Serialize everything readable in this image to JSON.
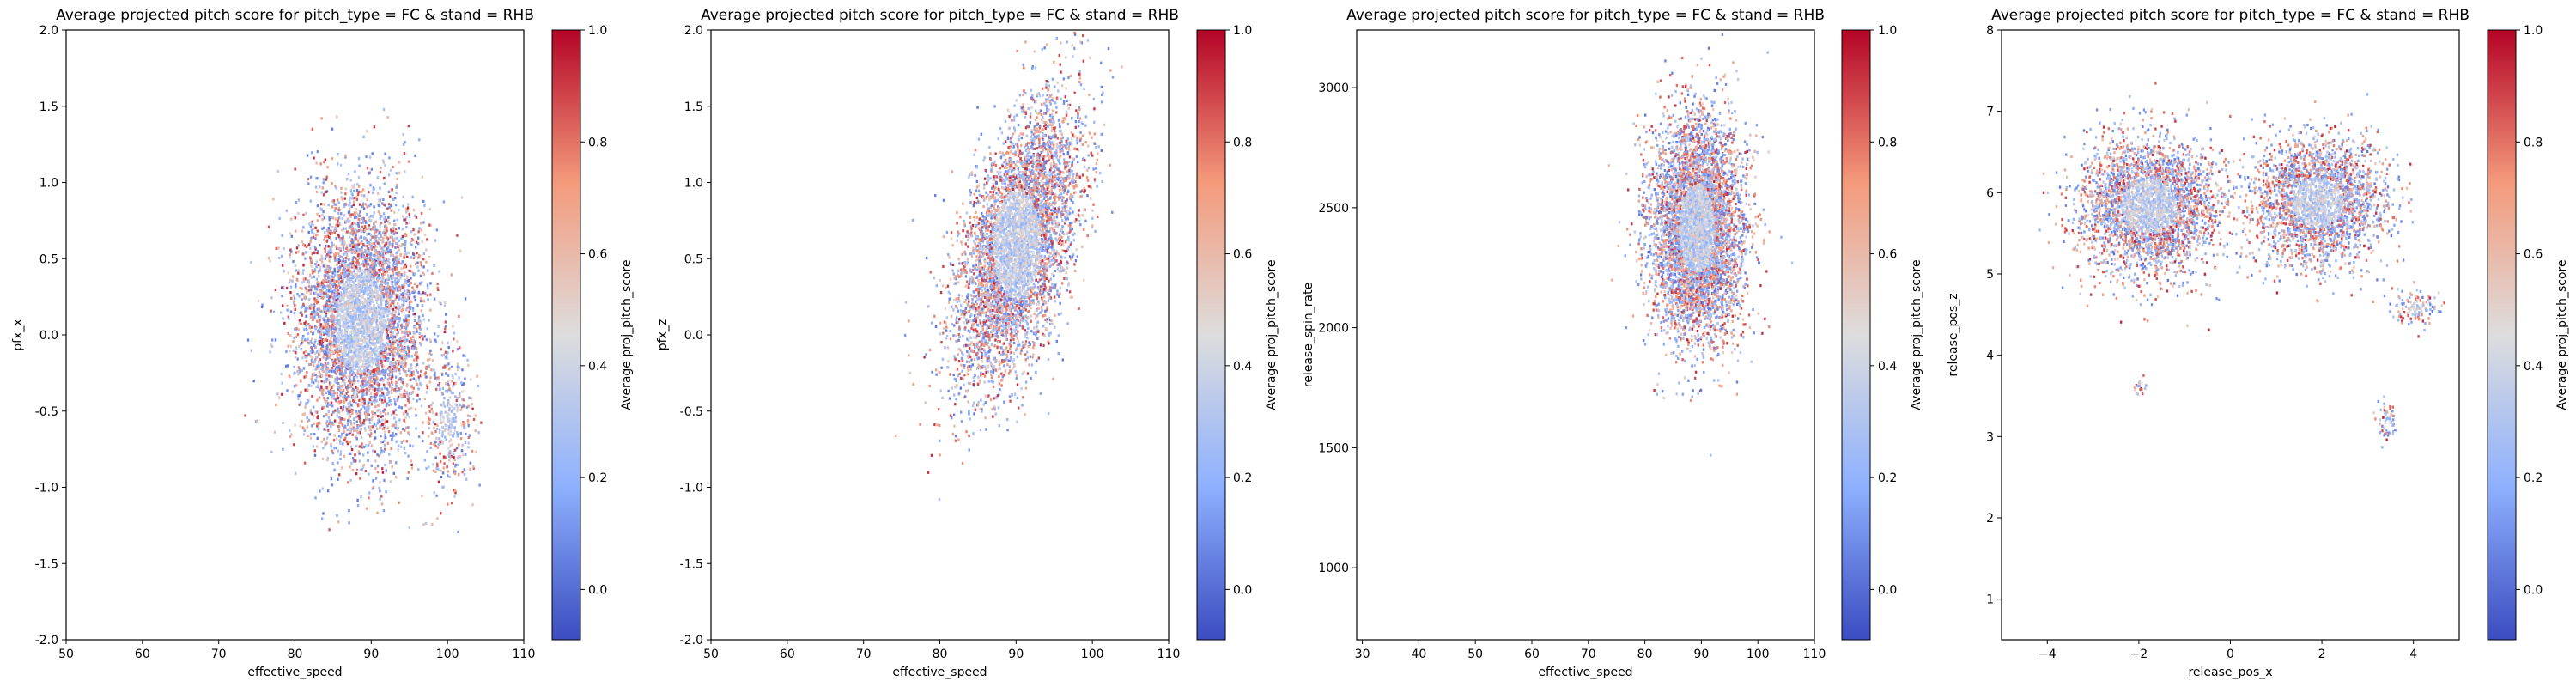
{
  "colors": {
    "low": "#3b4cc0",
    "mid": "#dddddd",
    "high": "#b40426"
  },
  "colorbar": {
    "label": "Average proj_pitch_score"
  },
  "chart_data": [
    {
      "type": "heatmap",
      "title": "Average projected pitch score for pitch_type = FC & stand = RHB",
      "xlabel": "effective_speed",
      "ylabel": "pfx_x",
      "xlim": [
        50,
        110
      ],
      "ylim": [
        -2.0,
        2.0
      ],
      "xticks": [
        "50",
        "60",
        "70",
        "80",
        "90",
        "100",
        "110"
      ],
      "xtick_values": [
        50,
        60,
        70,
        80,
        90,
        100,
        110
      ],
      "yticks": [
        "-2.0",
        "-1.5",
        "-1.0",
        "-0.5",
        "0.0",
        "0.5",
        "1.0",
        "1.5",
        "2.0"
      ],
      "ytick_values": [
        -2,
        -1.5,
        -1,
        -0.5,
        0,
        0.5,
        1,
        1.5,
        2
      ],
      "clusters": [
        {
          "cx": 88.5,
          "cy": 0.1,
          "sx": 4.2,
          "sy": 0.42,
          "n": 5200
        },
        {
          "cx": 100,
          "cy": -0.55,
          "sx": 1.6,
          "sy": 0.25,
          "n": 350
        }
      ],
      "colorbar_ticks": [
        "0.0",
        "0.2",
        "0.4",
        "0.6",
        "0.8",
        "1.0"
      ],
      "colorbar_tick_values": [
        0,
        0.2,
        0.4,
        0.6,
        0.8,
        1.0
      ],
      "colorbar_range": [
        -0.09,
        1.0
      ]
    },
    {
      "type": "heatmap",
      "title": "Average projected pitch score for pitch_type = FC & stand = RHB",
      "xlabel": "effective_speed",
      "ylabel": "pfx_z",
      "xlim": [
        50,
        110
      ],
      "ylim": [
        -2.0,
        2.0
      ],
      "xticks": [
        "50",
        "60",
        "70",
        "80",
        "90",
        "100",
        "110"
      ],
      "xtick_values": [
        50,
        60,
        70,
        80,
        90,
        100,
        110
      ],
      "yticks": [
        "-2.0",
        "-1.5",
        "-1.0",
        "-0.5",
        "0.0",
        "0.5",
        "1.0",
        "1.5",
        "2.0"
      ],
      "ytick_values": [
        -2,
        -1.5,
        -1,
        -0.5,
        0,
        0.5,
        1,
        1.5,
        2
      ],
      "clusters": [
        {
          "cx": 90,
          "cy": 0.6,
          "sx": 4.0,
          "sy": 0.45,
          "n": 5200,
          "rho": 0.55
        }
      ],
      "colorbar_ticks": [
        "0.0",
        "0.2",
        "0.4",
        "0.6",
        "0.8",
        "1.0"
      ],
      "colorbar_tick_values": [
        0,
        0.2,
        0.4,
        0.6,
        0.8,
        1.0
      ],
      "colorbar_range": [
        -0.09,
        1.0
      ]
    },
    {
      "type": "heatmap",
      "title": "Average projected pitch score for pitch_type = FC & stand = RHB",
      "xlabel": "effective_speed",
      "ylabel": "release_spin_rate",
      "xlim": [
        29,
        110
      ],
      "ylim": [
        700,
        3240
      ],
      "xticks": [
        "30",
        "40",
        "50",
        "60",
        "70",
        "80",
        "90",
        "100",
        "110"
      ],
      "xtick_values": [
        30,
        40,
        50,
        60,
        70,
        80,
        90,
        100,
        110
      ],
      "yticks": [
        "1000",
        "1500",
        "2000",
        "2500",
        "3000"
      ],
      "ytick_values": [
        1000,
        1500,
        2000,
        2500,
        3000
      ],
      "clusters": [
        {
          "cx": 89,
          "cy": 2420,
          "sx": 4.0,
          "sy": 230,
          "n": 5200
        }
      ],
      "colorbar_ticks": [
        "0.0",
        "0.2",
        "0.4",
        "0.6",
        "0.8",
        "1.0"
      ],
      "colorbar_tick_values": [
        0,
        0.2,
        0.4,
        0.6,
        0.8,
        1.0
      ],
      "colorbar_range": [
        -0.09,
        1.0
      ]
    },
    {
      "type": "heatmap",
      "title": "Average projected pitch score for pitch_type = FC & stand = RHB",
      "xlabel": "release_pos_x",
      "ylabel": "release_pos_z",
      "xlim": [
        -5,
        5
      ],
      "ylim": [
        0.5,
        8.0
      ],
      "xticks": [
        "−4",
        "−2",
        "0",
        "2",
        "4"
      ],
      "xtick_values": [
        -4,
        -2,
        0,
        2,
        4
      ],
      "yticks": [
        "1",
        "2",
        "3",
        "4",
        "5",
        "6",
        "7",
        "8"
      ],
      "ytick_values": [
        1,
        2,
        3,
        4,
        5,
        6,
        7,
        8
      ],
      "clusters": [
        {
          "cx": -1.8,
          "cy": 5.85,
          "sx": 0.75,
          "sy": 0.42,
          "n": 3000
        },
        {
          "cx": 1.9,
          "cy": 5.9,
          "sx": 0.7,
          "sy": 0.38,
          "n": 2500
        },
        {
          "cx": 4.0,
          "cy": 4.6,
          "sx": 0.25,
          "sy": 0.12,
          "n": 120
        },
        {
          "cx": 3.4,
          "cy": 3.2,
          "sx": 0.12,
          "sy": 0.12,
          "n": 60
        },
        {
          "cx": -2.0,
          "cy": 3.65,
          "sx": 0.08,
          "sy": 0.06,
          "n": 20
        }
      ],
      "colorbar_ticks": [
        "0.0",
        "0.2",
        "0.4",
        "0.6",
        "0.8",
        "1.0"
      ],
      "colorbar_tick_values": [
        0,
        0.2,
        0.4,
        0.6,
        0.8,
        1.0
      ],
      "colorbar_range": [
        -0.09,
        1.0
      ]
    }
  ]
}
